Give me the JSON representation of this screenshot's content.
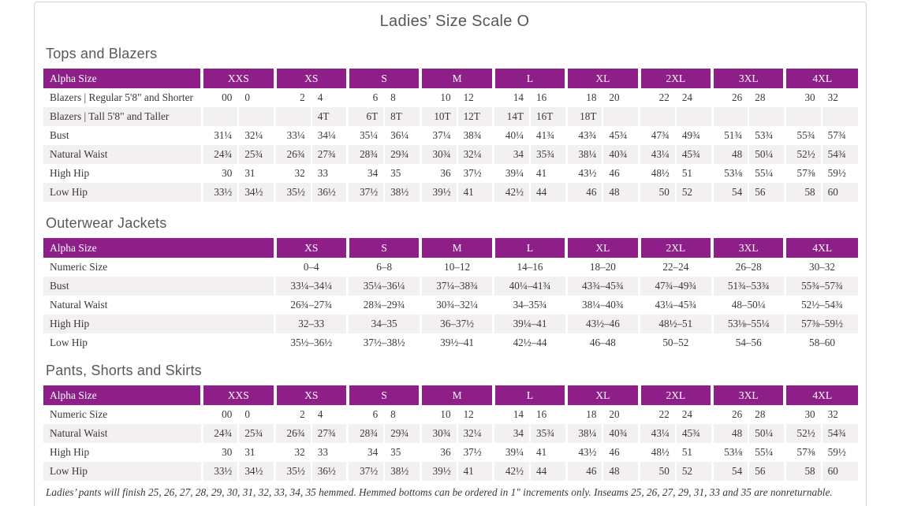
{
  "page": {
    "title": "Ladies’ Size Scale O",
    "footnote": "Ladies’ pants will finish 25, 26, 27, 28, 29, 30, 31, 32, 33, 34, 35 hemmed. Hemmed bottoms can be ordered in 1\" increments only. Inseams 25, 26, 27, 29, 31, 33 and 35 are nonreturnable."
  },
  "colors": {
    "accent_purple": "#8e1f89",
    "row_alt_gray": "#f2f0f1",
    "header_text": "#ffffff",
    "body_text": "#3b3839",
    "page_border": "#d8d2d6"
  },
  "tables": [
    {
      "section_title": "Tops and Blazers",
      "header_label": "Alpha Size",
      "sizes": [
        "XXS",
        "XS",
        "S",
        "M",
        "L",
        "XL",
        "2XL",
        "3XL",
        "4XL"
      ],
      "split_columns": true,
      "header_spans_first_group": false,
      "rows": [
        {
          "label": "Blazers | Regular 5'8\" and Shorter",
          "cells": [
            [
              "00",
              "0"
            ],
            [
              "2",
              "4"
            ],
            [
              "6",
              "8"
            ],
            [
              "10",
              "12"
            ],
            [
              "14",
              "16"
            ],
            [
              "18",
              "20"
            ],
            [
              "22",
              "24"
            ],
            [
              "26",
              "28"
            ],
            [
              "30",
              "32"
            ]
          ]
        },
        {
          "label": "Blazers | Tall 5'8\" and Taller",
          "cells": [
            [
              "",
              ""
            ],
            [
              "",
              "4T"
            ],
            [
              "6T",
              "8T"
            ],
            [
              "10T",
              "12T"
            ],
            [
              "14T",
              "16T"
            ],
            [
              "18T",
              ""
            ],
            [
              "",
              ""
            ],
            [
              "",
              ""
            ],
            [
              "",
              ""
            ]
          ]
        },
        {
          "label": "Bust",
          "cells": [
            [
              "31¼",
              "32¼"
            ],
            [
              "33¼",
              "34¼"
            ],
            [
              "35¼",
              "36¼"
            ],
            [
              "37¼",
              "38¾"
            ],
            [
              "40¼",
              "41¾"
            ],
            [
              "43¾",
              "45¾"
            ],
            [
              "47¾",
              "49¾"
            ],
            [
              "51¾",
              "53¾"
            ],
            [
              "55¾",
              "57¾"
            ]
          ]
        },
        {
          "label": "Natural Waist",
          "cells": [
            [
              "24¾",
              "25¾"
            ],
            [
              "26¾",
              "27¾"
            ],
            [
              "28¾",
              "29¾"
            ],
            [
              "30¾",
              "32¼"
            ],
            [
              "34",
              "35¾"
            ],
            [
              "38¼",
              "40¾"
            ],
            [
              "43¼",
              "45¾"
            ],
            [
              "48",
              "50¼"
            ],
            [
              "52½",
              "54¾"
            ]
          ]
        },
        {
          "label": "High Hip",
          "cells": [
            [
              "30",
              "31"
            ],
            [
              "32",
              "33"
            ],
            [
              "34",
              "35"
            ],
            [
              "36",
              "37½"
            ],
            [
              "39¼",
              "41"
            ],
            [
              "43½",
              "46"
            ],
            [
              "48½",
              "51"
            ],
            [
              "53⅛",
              "55¼"
            ],
            [
              "57⅜",
              "59½"
            ]
          ]
        },
        {
          "label": "Low Hip",
          "cells": [
            [
              "33½",
              "34½"
            ],
            [
              "35½",
              "36½"
            ],
            [
              "37½",
              "38½"
            ],
            [
              "39½",
              "41"
            ],
            [
              "42½",
              "44"
            ],
            [
              "46",
              "48"
            ],
            [
              "50",
              "52"
            ],
            [
              "54",
              "56"
            ],
            [
              "58",
              "60"
            ]
          ]
        }
      ]
    },
    {
      "section_title": "Outerwear Jackets",
      "header_label": "Alpha Size",
      "sizes": [
        "XS",
        "S",
        "M",
        "L",
        "XL",
        "2XL",
        "3XL",
        "4XL"
      ],
      "split_columns": false,
      "header_spans_first_group": true,
      "rows": [
        {
          "label": "Numeric Size",
          "cells": [
            "0–4",
            "6–8",
            "10–12",
            "14–16",
            "18–20",
            "22–24",
            "26–28",
            "30–32"
          ]
        },
        {
          "label": "Bust",
          "cells": [
            "33¼–34¼",
            "35¼–36¼",
            "37¼–38¾",
            "40¼–41¾",
            "43¾–45¾",
            "47¾–49¾",
            "51¾–53¾",
            "55¾–57¾"
          ]
        },
        {
          "label": "Natural Waist",
          "cells": [
            "26¾–27¾",
            "28¾–29¾",
            "30¾–32¼",
            "34–35¾",
            "38¼–40¾",
            "43¼–45¾",
            "48–50¼",
            "52½–54¾"
          ]
        },
        {
          "label": "High Hip",
          "cells": [
            "32–33",
            "34–35",
            "36–37½",
            "39¼–41",
            "43½–46",
            "48½–51",
            "53⅛–55¼",
            "57⅜–59½"
          ]
        },
        {
          "label": "Low Hip",
          "cells": [
            "35½–36½",
            "37½–38½",
            "39½–41",
            "42½–44",
            "46–48",
            "50–52",
            "54–56",
            "58–60"
          ]
        }
      ]
    },
    {
      "section_title": "Pants, Shorts and Skirts",
      "header_label": "Alpha Size",
      "sizes": [
        "XXS",
        "XS",
        "S",
        "M",
        "L",
        "XL",
        "2XL",
        "3XL",
        "4XL"
      ],
      "split_columns": true,
      "header_spans_first_group": false,
      "rows": [
        {
          "label": "Numeric Size",
          "cells": [
            [
              "00",
              "0"
            ],
            [
              "2",
              "4"
            ],
            [
              "6",
              "8"
            ],
            [
              "10",
              "12"
            ],
            [
              "14",
              "16"
            ],
            [
              "18",
              "20"
            ],
            [
              "22",
              "24"
            ],
            [
              "26",
              "28"
            ],
            [
              "30",
              "32"
            ]
          ]
        },
        {
          "label": "Natural Waist",
          "cells": [
            [
              "24¾",
              "25¾"
            ],
            [
              "26¾",
              "27¾"
            ],
            [
              "28¾",
              "29¾"
            ],
            [
              "30¾",
              "32¼"
            ],
            [
              "34",
              "35¾"
            ],
            [
              "38¼",
              "40¾"
            ],
            [
              "43¼",
              "45¾"
            ],
            [
              "48",
              "50¼"
            ],
            [
              "52½",
              "54¾"
            ]
          ]
        },
        {
          "label": "High Hip",
          "cells": [
            [
              "30",
              "31"
            ],
            [
              "32",
              "33"
            ],
            [
              "34",
              "35"
            ],
            [
              "36",
              "37½"
            ],
            [
              "39¼",
              "41"
            ],
            [
              "43½",
              "46"
            ],
            [
              "48½",
              "51"
            ],
            [
              "53⅛",
              "55¼"
            ],
            [
              "57⅜",
              "59½"
            ]
          ]
        },
        {
          "label": "Low Hip",
          "cells": [
            [
              "33½",
              "34½"
            ],
            [
              "35½",
              "36½"
            ],
            [
              "37½",
              "38½"
            ],
            [
              "39½",
              "41"
            ],
            [
              "42½",
              "44"
            ],
            [
              "46",
              "48"
            ],
            [
              "50",
              "52"
            ],
            [
              "54",
              "56"
            ],
            [
              "58",
              "60"
            ]
          ]
        }
      ]
    }
  ]
}
